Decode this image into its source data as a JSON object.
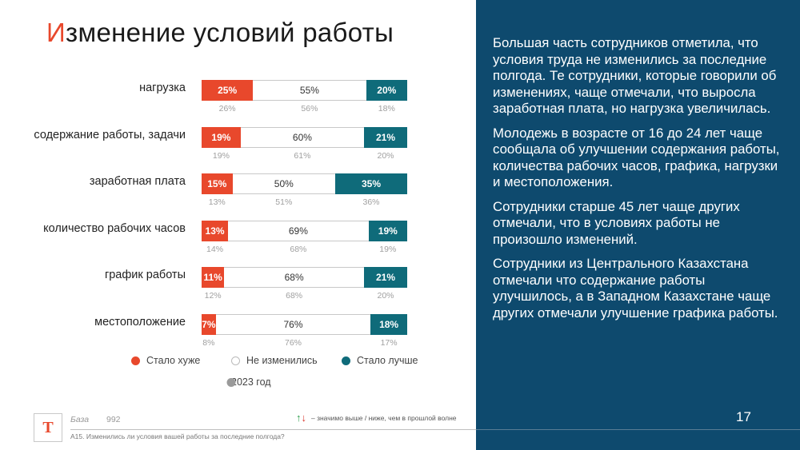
{
  "title": {
    "first_letter": "И",
    "rest": "зменение условий работы"
  },
  "chart_data": {
    "type": "bar",
    "stacked": true,
    "orientation": "horizontal",
    "categories": [
      "нагрузка",
      "содержание работы, задачи",
      "заработная плата",
      "количество рабочих часов",
      "график работы",
      "местоположение"
    ],
    "series": [
      {
        "name": "Стало хуже",
        "values": [
          25,
          19,
          15,
          13,
          11,
          7
        ],
        "labels": [
          "25%",
          "19%",
          "15%",
          "13%",
          "11%",
          "7%"
        ],
        "color": "#e8482c"
      },
      {
        "name": "Не изменились",
        "values": [
          55,
          60,
          50,
          69,
          68,
          76
        ],
        "labels": [
          "55%",
          "60%",
          "50%",
          "69%",
          "68%",
          "76%"
        ],
        "color": "#ffffff"
      },
      {
        "name": "Стало лучше",
        "values": [
          20,
          21,
          35,
          19,
          21,
          18
        ],
        "labels": [
          "20%",
          "21%",
          "35%",
          "19%",
          "21%",
          "18%"
        ],
        "color": "#0f6b7a"
      }
    ],
    "previous": {
      "name": "2023 год",
      "worse": [
        "26%",
        "19%",
        "13%",
        "14%",
        "12%",
        "8%"
      ],
      "same": [
        "56%",
        "61%",
        "51%",
        "68%",
        "68%",
        "76%"
      ],
      "better": [
        "18%",
        "20%",
        "36%",
        "19%",
        "20%",
        "17%"
      ]
    },
    "legend": [
      "Стало хуже",
      "Не изменились",
      "Стало лучше",
      "2023 год"
    ]
  },
  "legend": {
    "worse": "Стало хуже",
    "same": "Не изменились",
    "better": "Стало лучше",
    "prev": "2023 год"
  },
  "panel": {
    "paragraphs": [
      "Большая часть сотрудников отметила, что условия труда не изменились за последние полгода. Те сотрудники, которые говорили об изменениях, чаще отмечали, что выросла заработная плата, но нагрузка увеличилась.",
      "Молодежь в возрасте от 16 до 24 лет чаще сообщала об улучшении содержания работы, количества рабочих часов, графика, нагрузки и местоположения.",
      "Сотрудники старше 45 лет чаще других отмечали, что в условиях работы не произошло изменений.",
      "Сотрудники из Центрального Казахстана отмечали что содержание работы улучшилось, а в Западном Казахстане чаще других отмечали улучшение графика работы."
    ],
    "page_number": "17"
  },
  "footer": {
    "logo_letter": "T",
    "base_label": "База",
    "base_value": "992",
    "significance_note": "– значимо выше / ниже, чем в прошлой волне",
    "question": "A15. Изменились ли условия вашей работы за последние полгода?"
  }
}
